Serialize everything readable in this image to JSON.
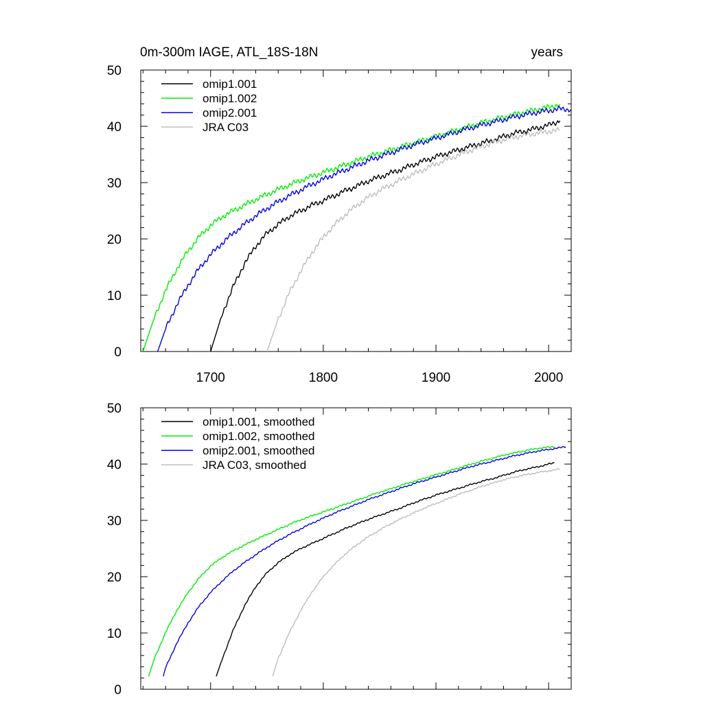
{
  "figure": {
    "title_left": "0m-300m IAGE, ATL_18S-18N",
    "title_right": "years"
  },
  "colors": {
    "omip1_001": "#000000",
    "omip1_002": "#00ee00",
    "omip2_001": "#0000dd",
    "jra_c03": "#bdbdbd"
  },
  "chart_data": [
    {
      "type": "line",
      "panel": "raw",
      "title": "0m-300m IAGE, ATL_18S-18N",
      "units": "years",
      "xlabel": "",
      "ylabel": "",
      "xlim": [
        1638,
        2020
      ],
      "ylim": [
        0,
        50
      ],
      "x_ticks": [
        1700,
        1800,
        1900,
        2000
      ],
      "x_tick_labels": [
        "1700",
        "1800",
        "1900",
        "2000"
      ],
      "y_ticks": [
        0,
        10,
        20,
        30,
        40,
        50
      ],
      "y_tick_labels": [
        "0",
        "10",
        "20",
        "30",
        "40",
        "50"
      ],
      "legend_position": "top-left",
      "grid": false,
      "series": [
        {
          "name": "omip1.001",
          "key": "omip1_001",
          "x": [
            1700,
            1710,
            1720,
            1730,
            1740,
            1750,
            1760,
            1770,
            1780,
            1790,
            1800,
            1810,
            1820,
            1830,
            1840,
            1850,
            1860,
            1870,
            1880,
            1890,
            1900,
            1910,
            1920,
            1930,
            1940,
            1950,
            1960,
            1970,
            1980,
            1990,
            2000,
            2010
          ],
          "y": [
            0,
            6.5,
            11.5,
            15.6,
            18.7,
            21,
            22.6,
            24,
            25,
            26,
            26.8,
            27.7,
            28.6,
            29.4,
            30.3,
            31,
            31.7,
            32.4,
            33.2,
            33.9,
            34.6,
            35.2,
            35.8,
            36.4,
            37,
            37.5,
            38.2,
            38.8,
            39.2,
            39.7,
            40.2,
            41
          ]
        },
        {
          "name": "omip1.002",
          "key": "omip1_002",
          "x": [
            1640,
            1650,
            1660,
            1670,
            1680,
            1690,
            1700,
            1710,
            1720,
            1730,
            1740,
            1750,
            1760,
            1770,
            1780,
            1790,
            1800,
            1810,
            1820,
            1830,
            1840,
            1850,
            1860,
            1870,
            1880,
            1890,
            1900,
            1910,
            1920,
            1930,
            1940,
            1950,
            1960,
            1970,
            1980,
            1990,
            2000,
            2010
          ],
          "y": [
            0,
            6,
            10.8,
            14.7,
            17.9,
            20.4,
            22.4,
            23.9,
            25,
            26,
            27,
            27.9,
            28.8,
            29.6,
            30.4,
            31.1,
            31.8,
            32.5,
            33.2,
            33.9,
            34.6,
            35.2,
            35.8,
            36.4,
            37,
            37.6,
            38.2,
            38.8,
            39.4,
            40,
            40.6,
            41.1,
            41.6,
            42.1,
            42.6,
            43,
            43.4,
            43.9
          ]
        },
        {
          "name": "omip2.001",
          "key": "omip2_001",
          "x": [
            1653,
            1660,
            1670,
            1680,
            1690,
            1700,
            1710,
            1720,
            1730,
            1740,
            1750,
            1760,
            1770,
            1780,
            1790,
            1800,
            1810,
            1820,
            1830,
            1840,
            1850,
            1860,
            1870,
            1880,
            1890,
            1900,
            1910,
            1920,
            1930,
            1940,
            1950,
            1960,
            1970,
            1980,
            1990,
            2000,
            2010,
            2020
          ],
          "y": [
            0,
            4,
            8.3,
            11.8,
            14.8,
            17.2,
            19.2,
            21,
            22.6,
            24.1,
            25.4,
            26.6,
            27.7,
            28.7,
            29.7,
            30.6,
            31.5,
            32.3,
            33.1,
            33.9,
            34.6,
            35.3,
            36,
            36.7,
            37.3,
            37.9,
            38.5,
            39.1,
            39.7,
            40.2,
            40.7,
            41.2,
            41.7,
            42.1,
            42.5,
            42.8,
            43.1,
            43
          ]
        },
        {
          "name": "JRA C03",
          "key": "jra_c03",
          "x": [
            1750,
            1760,
            1770,
            1780,
            1790,
            1800,
            1810,
            1820,
            1830,
            1840,
            1850,
            1860,
            1870,
            1880,
            1890,
            1900,
            1910,
            1920,
            1930,
            1940,
            1950,
            1960,
            1970,
            1980,
            1990,
            2000,
            2010
          ],
          "y": [
            0,
            5.8,
            10.5,
            14.3,
            17.6,
            20.3,
            22.5,
            24.4,
            26,
            27.4,
            28.6,
            29.6,
            30.6,
            31.5,
            32.4,
            33.3,
            34.1,
            34.9,
            35.7,
            36.4,
            37,
            37.6,
            38.1,
            38.5,
            38.8,
            39.1,
            39.3
          ]
        }
      ]
    },
    {
      "type": "line",
      "panel": "smoothed",
      "title": "",
      "xlabel": "",
      "ylabel": "",
      "xlim": [
        1638,
        2020
      ],
      "ylim": [
        0,
        50
      ],
      "x_ticks": [
        1700,
        1800,
        1900,
        2000
      ],
      "x_tick_labels": [],
      "y_ticks": [
        0,
        10,
        20,
        30,
        40,
        50
      ],
      "y_tick_labels": [
        "0",
        "10",
        "20",
        "30",
        "40",
        "50"
      ],
      "legend_position": "top-left",
      "grid": false,
      "series": [
        {
          "name": "omip1.001, smoothed",
          "key": "omip1_001",
          "x": [
            1705,
            1710,
            1720,
            1730,
            1740,
            1750,
            1760,
            1770,
            1780,
            1790,
            1800,
            1810,
            1820,
            1830,
            1840,
            1850,
            1860,
            1870,
            1880,
            1890,
            1900,
            1910,
            1920,
            1930,
            1940,
            1950,
            1960,
            1970,
            1980,
            1990,
            2000,
            2005
          ],
          "y": [
            2.3,
            5.2,
            10.5,
            14.8,
            18.2,
            20.7,
            22.5,
            23.9,
            25,
            25.9,
            26.8,
            27.7,
            28.6,
            29.4,
            30.2,
            30.9,
            31.6,
            32.3,
            33.1,
            33.8,
            34.5,
            35.1,
            35.7,
            36.3,
            36.9,
            37.4,
            38,
            38.6,
            39.1,
            39.5,
            40,
            40.2
          ]
        },
        {
          "name": "omip1.002, smoothed",
          "key": "omip1_002",
          "x": [
            1645,
            1650,
            1660,
            1670,
            1680,
            1690,
            1700,
            1710,
            1720,
            1730,
            1740,
            1750,
            1760,
            1770,
            1780,
            1790,
            1800,
            1810,
            1820,
            1830,
            1840,
            1850,
            1860,
            1870,
            1880,
            1890,
            1900,
            1910,
            1920,
            1930,
            1940,
            1950,
            1960,
            1970,
            1980,
            1990,
            2000,
            2005
          ],
          "y": [
            2.3,
            5.4,
            10.1,
            14,
            17.2,
            19.8,
            21.9,
            23.4,
            24.6,
            25.6,
            26.6,
            27.5,
            28.4,
            29.3,
            30.1,
            30.8,
            31.5,
            32.2,
            32.9,
            33.6,
            34.3,
            35,
            35.6,
            36.3,
            36.9,
            37.5,
            38.1,
            38.7,
            39.3,
            39.9,
            40.5,
            41,
            41.6,
            42,
            42.4,
            42.8,
            43,
            43.1
          ]
        },
        {
          "name": "omip2.001, smoothed",
          "key": "omip2_001",
          "x": [
            1658,
            1660,
            1670,
            1680,
            1690,
            1700,
            1710,
            1720,
            1730,
            1740,
            1750,
            1760,
            1770,
            1780,
            1790,
            1800,
            1810,
            1820,
            1830,
            1840,
            1850,
            1860,
            1870,
            1880,
            1890,
            1900,
            1910,
            1920,
            1930,
            1940,
            1950,
            1960,
            1970,
            1980,
            1990,
            2000,
            2010,
            2015
          ],
          "y": [
            2.3,
            3.8,
            8.2,
            11.8,
            14.8,
            17.2,
            19.2,
            21,
            22.5,
            23.9,
            25.2,
            26.4,
            27.5,
            28.5,
            29.5,
            30.4,
            31.3,
            32.1,
            32.9,
            33.7,
            34.4,
            35.1,
            35.8,
            36.5,
            37.1,
            37.7,
            38.3,
            38.9,
            39.5,
            40,
            40.5,
            41,
            41.5,
            41.9,
            42.3,
            42.6,
            42.9,
            43.1
          ]
        },
        {
          "name": "JRA C03, smoothed",
          "key": "jra_c03",
          "x": [
            1755,
            1760,
            1770,
            1780,
            1790,
            1800,
            1810,
            1820,
            1830,
            1840,
            1850,
            1860,
            1870,
            1880,
            1890,
            1900,
            1910,
            1920,
            1930,
            1940,
            1950,
            1960,
            1970,
            1980,
            1990,
            2000,
            2010
          ],
          "y": [
            2.3,
            5.5,
            10.1,
            14,
            17.3,
            20,
            22.2,
            24.1,
            25.7,
            27.1,
            28.3,
            29.4,
            30.4,
            31.3,
            32.2,
            33,
            33.8,
            34.6,
            35.3,
            36,
            36.6,
            37.2,
            37.7,
            38.1,
            38.5,
            38.8,
            39.1
          ]
        }
      ]
    }
  ]
}
